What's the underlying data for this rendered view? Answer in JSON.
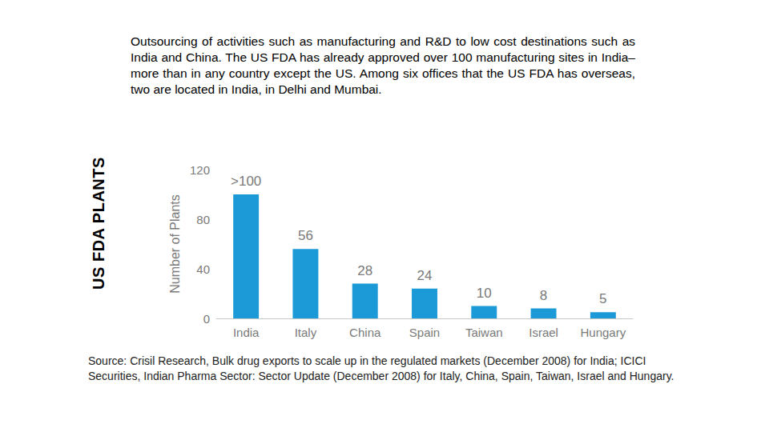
{
  "slide": {
    "caption": "Outsourcing of activities such as manufacturing and R&D to low cost destinations such as India and China. The US FDA has already approved over 100 manufacturing sites in India– more than in any country except the US. Among six offices that the US FDA has overseas, two are located in India, in Delhi and Mumbai.",
    "side_label": "US FDA PLANTS",
    "source": "Source: Crisil Research, Bulk drug exports to scale up in the regulated markets (December 2008) for India; ICICI Securities, Indian Pharma Sector: Sector Update (December 2008) for Italy, China, Spain, Taiwan, Israel and Hungary."
  },
  "chart_data": {
    "type": "bar",
    "y_label": "Number of Plants",
    "categories": [
      "India",
      "Italy",
      "China",
      "Spain",
      "Taiwan",
      "Israel",
      "Hungary"
    ],
    "values": [
      100,
      56,
      28,
      24,
      10,
      8,
      5
    ],
    "value_labels": [
      ">100",
      "56",
      "28",
      "24",
      "10",
      "8",
      "5"
    ],
    "color": "#1b9ad7",
    "ylim": [
      0,
      120
    ],
    "yticks": [
      0,
      40,
      80,
      120
    ],
    "grid": false,
    "data_labels": true
  }
}
